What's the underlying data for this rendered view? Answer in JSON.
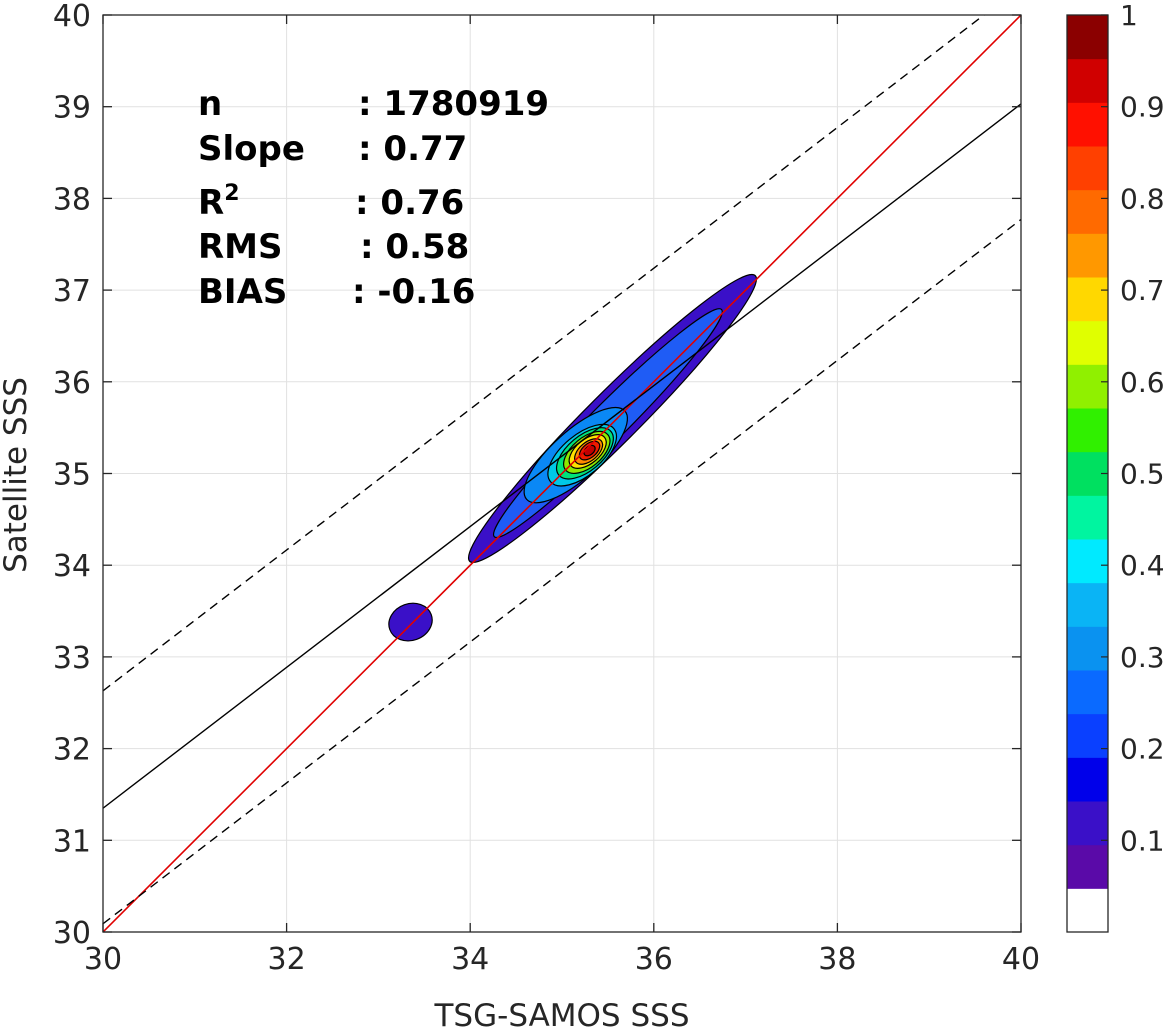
{
  "chart_data": {
    "type": "contour",
    "xlabel": "TSG-SAMOS SSS",
    "ylabel": "Satellite SSS",
    "xlim": [
      30,
      40
    ],
    "ylim": [
      30,
      40
    ],
    "x_ticks": [
      "30",
      "32",
      "34",
      "36",
      "38",
      "40"
    ],
    "y_ticks": [
      "30",
      "31",
      "32",
      "33",
      "34",
      "35",
      "36",
      "37",
      "38",
      "39",
      "40"
    ],
    "grid": true,
    "stats": [
      {
        "key": "n",
        "sep": ": 1780919"
      },
      {
        "key": "Slope",
        "sep": ": 0.77"
      },
      {
        "key": "R",
        "sup": "2",
        "sep": ": 0.76"
      },
      {
        "key": "RMS",
        "sep": ": 0.58"
      },
      {
        "key": "BIAS",
        "sep": ": -0.16"
      }
    ],
    "lines": [
      {
        "name": "one_to_one",
        "x": [
          30,
          40
        ],
        "y": [
          30,
          40
        ],
        "color": "#e00000",
        "style": "solid"
      },
      {
        "name": "regression",
        "x": [
          30,
          40
        ],
        "y": [
          31.35,
          39.03
        ],
        "color": "#000000",
        "style": "solid"
      },
      {
        "name": "upper_bound",
        "x": [
          30,
          40
        ],
        "y": [
          32.63,
          40.31
        ],
        "color": "#000000",
        "style": "dashed"
      },
      {
        "name": "lower_bound",
        "x": [
          30,
          40
        ],
        "y": [
          30.09,
          37.77
        ],
        "color": "#000000",
        "style": "dashed"
      }
    ],
    "density_peak": {
      "x": 35.3,
      "y": 35.25
    },
    "contour_levels": [
      {
        "level": 0.05,
        "color": "#3a10c8",
        "cx": 35.55,
        "cy": 35.6,
        "rx": 2.2,
        "ry": 0.28,
        "angle_deg": 45
      },
      {
        "level": 0.15,
        "color": "#1f5cf5",
        "cx": 35.5,
        "cy": 35.55,
        "rx": 1.75,
        "ry": 0.2,
        "angle_deg": 45
      },
      {
        "level": 0.25,
        "color": "#0a88f5",
        "cx": 35.15,
        "cy": 35.2,
        "rx": 0.72,
        "ry": 0.26,
        "angle_deg": 42
      },
      {
        "level": 0.35,
        "color": "#00c8e6",
        "cx": 35.22,
        "cy": 35.2,
        "rx": 0.45,
        "ry": 0.22,
        "angle_deg": 40
      },
      {
        "level": 0.45,
        "color": "#00e27a",
        "cx": 35.25,
        "cy": 35.22,
        "rx": 0.37,
        "ry": 0.19,
        "angle_deg": 40
      },
      {
        "level": 0.55,
        "color": "#8ee800",
        "cx": 35.27,
        "cy": 35.23,
        "rx": 0.3,
        "ry": 0.16,
        "angle_deg": 40
      },
      {
        "level": 0.65,
        "color": "#ffe000",
        "cx": 35.28,
        "cy": 35.24,
        "rx": 0.24,
        "ry": 0.13,
        "angle_deg": 40
      },
      {
        "level": 0.75,
        "color": "#ff8a00",
        "cx": 35.29,
        "cy": 35.24,
        "rx": 0.18,
        "ry": 0.1,
        "angle_deg": 40
      },
      {
        "level": 0.85,
        "color": "#ee1c00",
        "cx": 35.3,
        "cy": 35.25,
        "rx": 0.13,
        "ry": 0.075,
        "angle_deg": 40
      },
      {
        "level": 0.95,
        "color": "#c00000",
        "cx": 35.3,
        "cy": 35.25,
        "rx": 0.07,
        "ry": 0.045,
        "angle_deg": 40
      }
    ],
    "secondary_blob": {
      "color": "#3a10c8",
      "cx": 33.35,
      "cy": 33.38,
      "rx": 0.24,
      "ry": 0.2,
      "angle_deg": 20
    },
    "colorbar": {
      "min": 0,
      "max": 1,
      "tick_labels": [
        "0.1",
        "0.2",
        "0.3",
        "0.4",
        "0.5",
        "0.6",
        "0.7",
        "0.8",
        "0.9",
        "1"
      ],
      "tick_values": [
        0.1,
        0.2,
        0.3,
        0.4,
        0.5,
        0.6,
        0.7,
        0.8,
        0.9,
        1.0
      ],
      "colors": [
        "#ffffff",
        "#5a0aa8",
        "#3a10c8",
        "#0000ea",
        "#0a40ff",
        "#0a6aff",
        "#0a92f0",
        "#0ab4f5",
        "#00eaff",
        "#00f5a0",
        "#00e060",
        "#30f000",
        "#90f000",
        "#e0ff00",
        "#ffd800",
        "#ff9800",
        "#ff6a00",
        "#ff4000",
        "#ff1000",
        "#d00000",
        "#8b0000"
      ]
    }
  }
}
